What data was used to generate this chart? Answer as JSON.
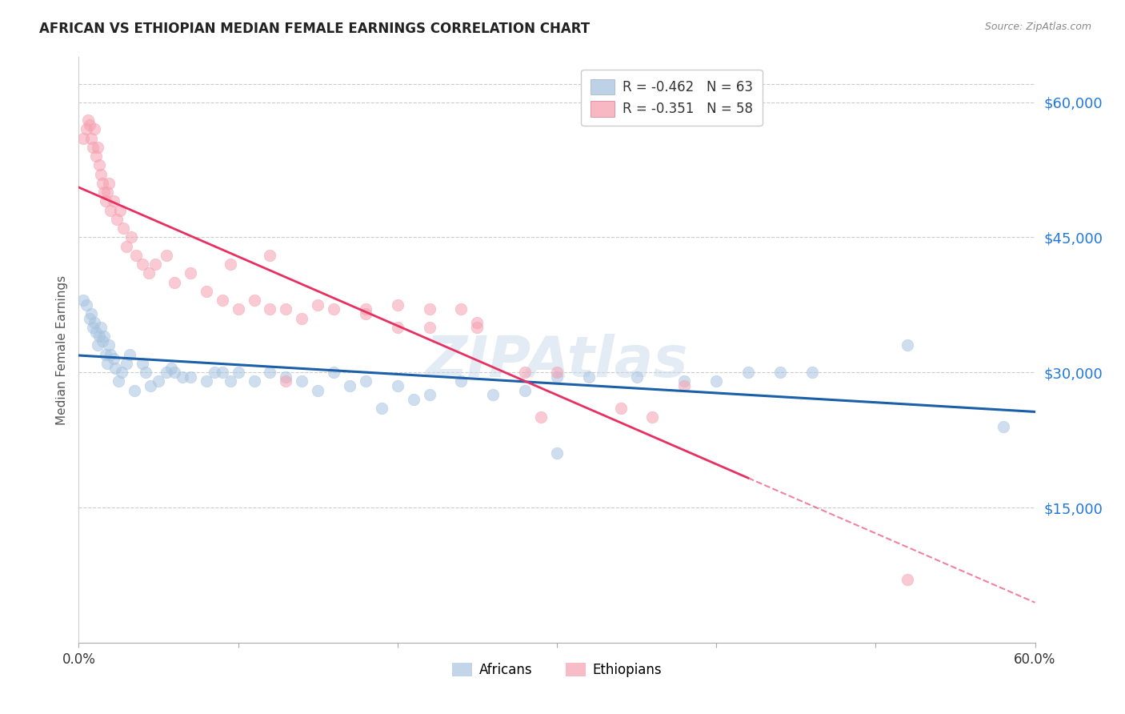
{
  "title": "AFRICAN VS ETHIOPIAN MEDIAN FEMALE EARNINGS CORRELATION CHART",
  "source": "Source: ZipAtlas.com",
  "ylabel": "Median Female Earnings",
  "ytick_labels": [
    "$15,000",
    "$30,000",
    "$45,000",
    "$60,000"
  ],
  "ytick_values": [
    15000,
    30000,
    45000,
    60000
  ],
  "ymin": 0,
  "ymax": 65000,
  "xmin": 0.0,
  "xmax": 0.6,
  "watermark": "ZIPAtlas",
  "legend_r1": "-0.462",
  "legend_n1": "63",
  "legend_r2": "-0.351",
  "legend_n2": "58",
  "legend_label1": "Africans",
  "legend_label2": "Ethiopians",
  "blue_color": "#A8C4E0",
  "pink_color": "#F5A0B0",
  "line_blue": "#1A5FA8",
  "line_pink": "#E83060",
  "africans_x": [
    0.003,
    0.005,
    0.007,
    0.008,
    0.009,
    0.01,
    0.011,
    0.012,
    0.013,
    0.014,
    0.015,
    0.016,
    0.017,
    0.018,
    0.019,
    0.02,
    0.022,
    0.023,
    0.025,
    0.027,
    0.03,
    0.032,
    0.035,
    0.04,
    0.042,
    0.045,
    0.05,
    0.055,
    0.058,
    0.06,
    0.065,
    0.07,
    0.08,
    0.085,
    0.09,
    0.095,
    0.1,
    0.11,
    0.12,
    0.13,
    0.14,
    0.15,
    0.16,
    0.17,
    0.18,
    0.19,
    0.2,
    0.21,
    0.22,
    0.24,
    0.26,
    0.28,
    0.3,
    0.32,
    0.35,
    0.38,
    0.4,
    0.42,
    0.44,
    0.46,
    0.3,
    0.52,
    0.58
  ],
  "africans_y": [
    38000,
    37500,
    36000,
    36500,
    35000,
    35500,
    34500,
    33000,
    34000,
    35000,
    33500,
    34000,
    32000,
    31000,
    33000,
    32000,
    31500,
    30500,
    29000,
    30000,
    31000,
    32000,
    28000,
    31000,
    30000,
    28500,
    29000,
    30000,
    30500,
    30000,
    29500,
    29500,
    29000,
    30000,
    30000,
    29000,
    30000,
    29000,
    30000,
    29500,
    29000,
    28000,
    30000,
    28500,
    29000,
    26000,
    28500,
    27000,
    27500,
    29000,
    27500,
    28000,
    29500,
    29500,
    29500,
    29000,
    29000,
    30000,
    30000,
    30000,
    21000,
    33000,
    24000
  ],
  "ethiopians_x": [
    0.003,
    0.005,
    0.006,
    0.007,
    0.008,
    0.009,
    0.01,
    0.011,
    0.012,
    0.013,
    0.014,
    0.015,
    0.016,
    0.017,
    0.018,
    0.019,
    0.02,
    0.022,
    0.024,
    0.026,
    0.028,
    0.03,
    0.033,
    0.036,
    0.04,
    0.044,
    0.048,
    0.055,
    0.06,
    0.07,
    0.08,
    0.09,
    0.1,
    0.11,
    0.12,
    0.13,
    0.14,
    0.15,
    0.16,
    0.18,
    0.2,
    0.22,
    0.24,
    0.25,
    0.28,
    0.3,
    0.34,
    0.36,
    0.38,
    0.095,
    0.12,
    0.13,
    0.18,
    0.2,
    0.22,
    0.25,
    0.29,
    0.52
  ],
  "ethiopians_y": [
    56000,
    57000,
    58000,
    57500,
    56000,
    55000,
    57000,
    54000,
    55000,
    53000,
    52000,
    51000,
    50000,
    49000,
    50000,
    51000,
    48000,
    49000,
    47000,
    48000,
    46000,
    44000,
    45000,
    43000,
    42000,
    41000,
    42000,
    43000,
    40000,
    41000,
    39000,
    38000,
    37000,
    38000,
    37000,
    37000,
    36000,
    37500,
    37000,
    36500,
    35000,
    37000,
    37000,
    35500,
    30000,
    30000,
    26000,
    25000,
    28500,
    42000,
    43000,
    29000,
    37000,
    37500,
    35000,
    35000,
    25000,
    7000
  ]
}
